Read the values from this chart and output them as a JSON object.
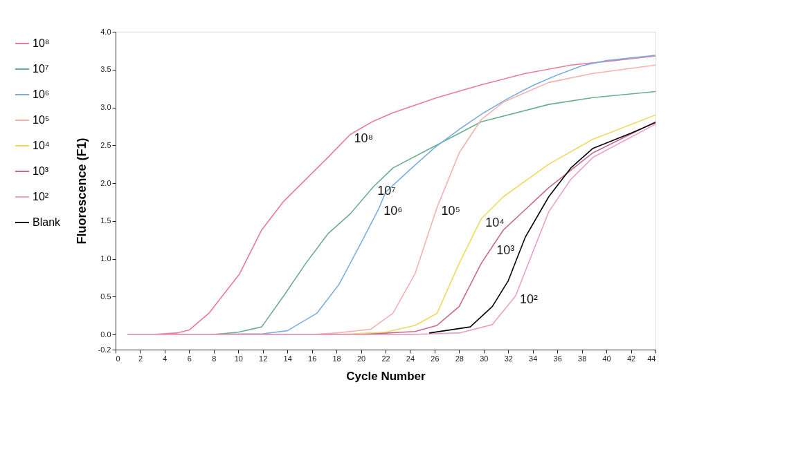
{
  "chart_data": {
    "type": "line",
    "xlabel": "Cycle Number",
    "ylabel": "Fluorescence (F1)",
    "xlim": [
      0,
      44
    ],
    "xticks": [
      0,
      2,
      4,
      6,
      8,
      10,
      12,
      14,
      16,
      18,
      20,
      22,
      24,
      26,
      28,
      30,
      32,
      34,
      36,
      38,
      40,
      42,
      44
    ],
    "ylim": [
      -0.2,
      4.0
    ],
    "yticks": [
      {
        "value": -0.2,
        "label": "-0.2"
      },
      {
        "value": 0,
        "label": "0.0"
      },
      0.5,
      {
        "value": 1,
        "label": "1.0"
      },
      1.5,
      {
        "value": 2,
        "label": "2.0"
      },
      2.5,
      {
        "value": 3,
        "label": "3.0"
      },
      3.5,
      {
        "value": 4,
        "label": "4.0"
      }
    ],
    "grid": false,
    "legend": "left",
    "marker": "none",
    "line_style": "solid",
    "series": [
      {
        "name": "10⁸",
        "color": "#e87a9a",
        "x": [
          1,
          3,
          5,
          6,
          7.6,
          10.1,
          11.9,
          13.7,
          15.5,
          17.3,
          19.1,
          20.9,
          22.6,
          26.2,
          29.8,
          33.4,
          37.1,
          40.7,
          44
        ],
        "values": [
          0,
          0,
          0.02,
          0.06,
          0.28,
          0.8,
          1.38,
          1.76,
          2.05,
          2.34,
          2.64,
          2.81,
          2.93,
          3.13,
          3.3,
          3.45,
          3.56,
          3.62,
          3.68
        ]
      },
      {
        "name": "10⁷",
        "color": "#6aae8a",
        "x": [
          1,
          4,
          8,
          10,
          11.9,
          13.7,
          15.5,
          17.3,
          19.1,
          21,
          22.6,
          25.3,
          29.8,
          35.3,
          38.9,
          44
        ],
        "values": [
          0,
          0,
          0,
          0.03,
          0.1,
          0.51,
          0.94,
          1.33,
          1.59,
          1.95,
          2.2,
          2.43,
          2.81,
          3.04,
          3.13,
          3.21
        ]
      },
      {
        "name": "10⁶",
        "color": "#7aaee0",
        "x": [
          1,
          6,
          12,
          14,
          16.4,
          18.2,
          20.1,
          21.5,
          22,
          24,
          26,
          28,
          30,
          32,
          34,
          36,
          38,
          40,
          44
        ],
        "values": [
          0,
          0,
          0.01,
          0.05,
          0.28,
          0.66,
          1.24,
          1.68,
          1.88,
          2.18,
          2.47,
          2.71,
          2.93,
          3.12,
          3.29,
          3.43,
          3.55,
          3.62,
          3.69
        ]
      },
      {
        "name": "10⁵",
        "color": "#f4b0b0",
        "x": [
          1,
          8,
          16,
          18,
          20.8,
          22.6,
          24.4,
          26.2,
          28,
          29.8,
          31.6,
          35.3,
          38.9,
          44
        ],
        "values": [
          0,
          0,
          0,
          0.02,
          0.07,
          0.28,
          0.8,
          1.68,
          2.4,
          2.84,
          3.07,
          3.33,
          3.45,
          3.56
        ]
      },
      {
        "name": "10⁴",
        "color": "#f2d860",
        "x": [
          1,
          10,
          18,
          22,
          24.4,
          26.2,
          28,
          29.8,
          31.6,
          35.3,
          38.9,
          44
        ],
        "values": [
          0,
          0,
          0,
          0.03,
          0.12,
          0.28,
          0.94,
          1.53,
          1.82,
          2.25,
          2.58,
          2.9
        ]
      },
      {
        "name": "10³",
        "color": "#c86a90",
        "x": [
          1,
          12,
          20,
          24.4,
          26.2,
          28,
          29.8,
          30.7,
          31.6,
          35.3,
          38.9,
          44
        ],
        "values": [
          0,
          0,
          0,
          0.04,
          0.12,
          0.37,
          0.94,
          1.16,
          1.38,
          1.94,
          2.4,
          2.81
        ]
      },
      {
        "name": "10²",
        "color": "#e8a0c8",
        "x": [
          1,
          14,
          24,
          28,
          30.7,
          32.6,
          34,
          35.3,
          37.1,
          38.9,
          44
        ],
        "values": [
          0,
          0,
          0,
          0.02,
          0.13,
          0.51,
          1.09,
          1.62,
          2.05,
          2.34,
          2.78
        ]
      },
      {
        "name": "Blank",
        "color": "#000000",
        "x": [
          25.6,
          28.9,
          30.7,
          32,
          33.4,
          35.3,
          37.1,
          38.9,
          42,
          44
        ],
        "values": [
          0.02,
          0.1,
          0.37,
          0.71,
          1.29,
          1.82,
          2.2,
          2.46,
          2.66,
          2.8
        ]
      }
    ],
    "annotations": [
      {
        "text": "10⁸",
        "x": 19.1,
        "y": 2.64
      },
      {
        "text": "10⁷",
        "x": 21,
        "y": 1.95
      },
      {
        "text": "10⁶",
        "x": 21.5,
        "y": 1.68
      },
      {
        "text": "10⁵",
        "x": 26.2,
        "y": 1.68
      },
      {
        "text": "10⁴",
        "x": 29.8,
        "y": 1.53
      },
      {
        "text": "10³",
        "x": 30.7,
        "y": 1.16
      },
      {
        "text": "10²",
        "x": 32.6,
        "y": 0.51
      }
    ]
  }
}
